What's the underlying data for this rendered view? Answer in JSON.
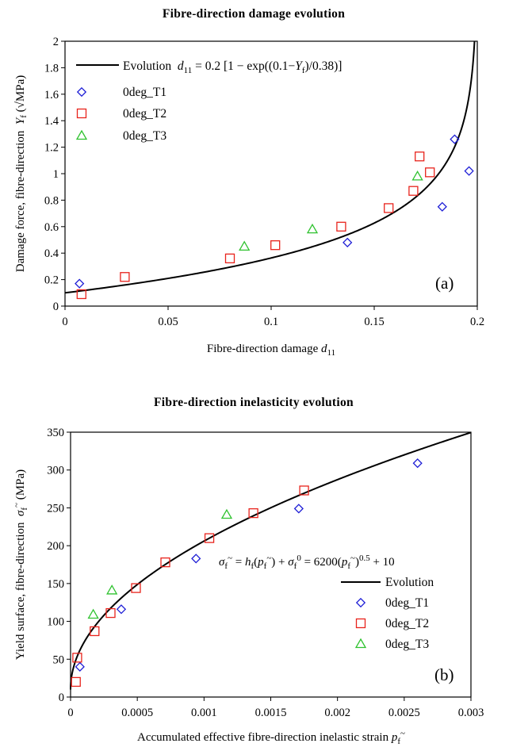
{
  "chart_data": [
    {
      "type": "scatter",
      "title": "Fibre-direction damage evolution",
      "xlabel": "Fibre-direction damage d11",
      "ylabel": "Damage force, fibre-direction  Yf (√MPa)",
      "xlim": [
        0,
        0.2
      ],
      "ylim": [
        0,
        2
      ],
      "xticks": [
        "0",
        "0.05",
        "0.1",
        "0.15",
        "0.2"
      ],
      "yticks": [
        "0",
        "0.2",
        "0.4",
        "0.6",
        "0.8",
        "1",
        "1.2",
        "1.4",
        "1.6",
        "1.8",
        "2"
      ],
      "xtick_values": [
        0,
        0.05,
        0.1,
        0.15,
        0.2
      ],
      "ytick_values": [
        0,
        0.2,
        0.4,
        0.6,
        0.8,
        1,
        1.2,
        1.4,
        1.6,
        1.8,
        2
      ],
      "grid": false,
      "legend_position": "top-left",
      "panel_label": "(a)",
      "curve": {
        "name": "Evolution",
        "equation": "d11 = 0.2 [1 − exp((0.1−Yf)/0.38)]",
        "a": 0.2,
        "y0": 0.1,
        "tau": 0.38
      },
      "series": [
        {
          "name": "0deg_T1",
          "marker": "diamond",
          "color": "#1f1fd6",
          "x": [
            0.007,
            0.137,
            0.183,
            0.189,
            0.196
          ],
          "y": [
            0.17,
            0.48,
            0.75,
            1.26,
            1.02
          ]
        },
        {
          "name": "0deg_T2",
          "marker": "square",
          "color": "#e8231c",
          "x": [
            0.008,
            0.029,
            0.08,
            0.102,
            0.134,
            0.157,
            0.169,
            0.172,
            0.177
          ],
          "y": [
            0.09,
            0.22,
            0.36,
            0.46,
            0.6,
            0.74,
            0.87,
            1.13,
            1.01
          ]
        },
        {
          "name": "0deg_T3",
          "marker": "triangle",
          "color": "#2fc22f",
          "x": [
            0.087,
            0.12,
            0.171
          ],
          "y": [
            0.45,
            0.58,
            0.98
          ]
        }
      ]
    },
    {
      "type": "scatter",
      "title": "Fibre-direction inelasticity evolution",
      "xlabel": "Accumulated effective fibre-direction inelastic strain pf~",
      "ylabel": "Yield surface, fibre-direction  σf~ (MPa)",
      "xlim": [
        0,
        0.003
      ],
      "ylim": [
        0,
        350
      ],
      "xticks": [
        "0",
        "0.0005",
        "0.001",
        "0.0015",
        "0.002",
        "0.0025",
        "0.003"
      ],
      "yticks": [
        "0",
        "50",
        "100",
        "150",
        "200",
        "250",
        "300",
        "350"
      ],
      "xtick_values": [
        0,
        0.0005,
        0.001,
        0.0015,
        0.002,
        0.0025,
        0.003
      ],
      "ytick_values": [
        0,
        50,
        100,
        150,
        200,
        250,
        300,
        350
      ],
      "grid": false,
      "legend_position": "bottom-right",
      "panel_label": "(b)",
      "curve": {
        "name": "Evolution",
        "equation": "σf~ = hf(pf~) + σf0 = 6200(pf~)0.5 + 10",
        "k": 6200,
        "n": 0.5,
        "c": 10
      },
      "series": [
        {
          "name": "0deg_T1",
          "marker": "diamond",
          "color": "#1f1fd6",
          "x": [
            7e-05,
            0.00038,
            0.00094,
            0.00171,
            0.0026
          ],
          "y": [
            40,
            116,
            183,
            249,
            309
          ]
        },
        {
          "name": "0deg_T2",
          "marker": "square",
          "color": "#e8231c",
          "x": [
            4e-05,
            5e-05,
            0.00018,
            0.0003,
            0.00049,
            0.00071,
            0.00104,
            0.00137,
            0.00175
          ],
          "y": [
            20,
            52,
            87,
            111,
            144,
            178,
            210,
            243,
            273
          ]
        },
        {
          "name": "0deg_T3",
          "marker": "triangle",
          "color": "#2fc22f",
          "x": [
            0.00017,
            0.00031,
            0.00117
          ],
          "y": [
            109,
            141,
            241
          ]
        }
      ]
    }
  ]
}
